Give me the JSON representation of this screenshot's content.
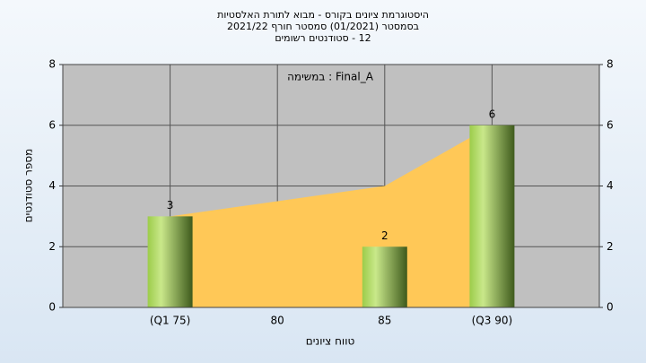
{
  "chart_data": {
    "type": "bar",
    "title": [
      "היסטוגרמת ציונים בקורס - מבוא לתורת האלסטיות",
      "בסמסטר  (01/2021)  סמסטר חורף 2021/22",
      "12 - סטודנטים רשומים"
    ],
    "annotation": "Final_A : במשימה",
    "x_label": "טווח ציונים",
    "y_label": "מספר סטודנטים",
    "categories": [
      "(Q1 75)",
      "80",
      "85",
      "(Q3 90)"
    ],
    "series": [
      {
        "type": "area",
        "color": "#ffc857",
        "values": [
          3,
          3.5,
          4,
          6
        ]
      },
      {
        "type": "bar",
        "color": "#8fc24a",
        "values": [
          3,
          null,
          2,
          6
        ]
      }
    ],
    "ylim": [
      0,
      8
    ],
    "yticks": [
      0,
      2,
      4,
      6,
      8
    ],
    "y2ticks": [
      0,
      2,
      4,
      6,
      8
    ],
    "grid": true
  }
}
